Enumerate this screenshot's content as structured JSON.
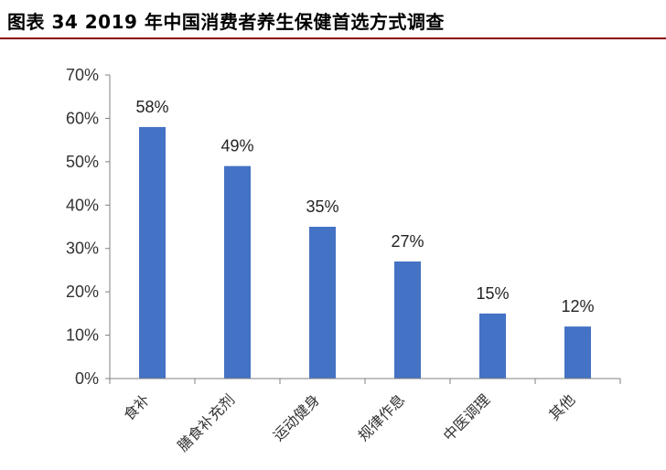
{
  "title": "图表 34 2019 年中国消费者养生保健首选方式调查",
  "chart_data": {
    "type": "bar",
    "categories": [
      "食补",
      "膳食补充剂",
      "运动健身",
      "规律作息",
      "中医调理",
      "其他"
    ],
    "values": [
      58,
      49,
      35,
      27,
      15,
      12
    ],
    "value_labels": [
      "58%",
      "49%",
      "35%",
      "27%",
      "15%",
      "12%"
    ],
    "ylim": [
      0,
      70
    ],
    "yticks": [
      0,
      10,
      20,
      30,
      40,
      50,
      60,
      70
    ],
    "ytick_labels": [
      "0%",
      "10%",
      "20%",
      "30%",
      "40%",
      "50%",
      "60%",
      "70%"
    ],
    "xlabel": "",
    "ylabel": "",
    "grid": false,
    "bar_color": "#4472c4",
    "axis_color": "#808080"
  }
}
